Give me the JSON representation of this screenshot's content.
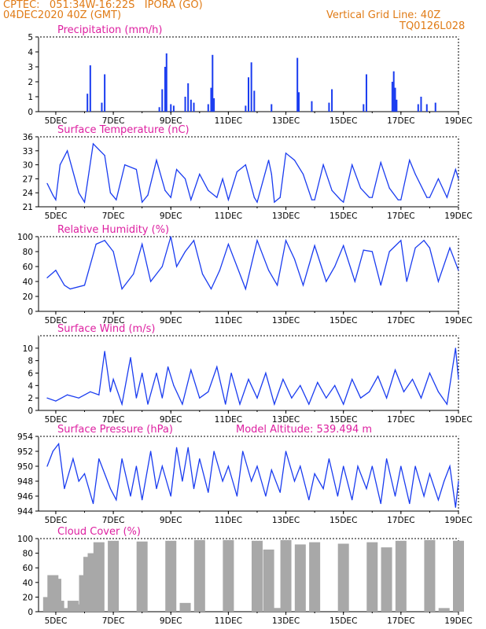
{
  "header": {
    "line1": "CPTEC:   051:34W-16:22S   IPORA (GO)",
    "line2": "04DEC2020 40Z (GMT)",
    "right1": "Vertical Grid Line: 40Z",
    "right2": "TQ0126L028",
    "color": "#e07b16"
  },
  "chart_data": [
    {
      "type": "bar",
      "title": "Precipitation (mm/h)",
      "xticks": [
        "5DEC",
        "7DEC",
        "9DEC",
        "11DEC",
        "13DEC",
        "15DEC",
        "17DEC",
        "19DEC"
      ],
      "ylim": [
        0,
        5
      ],
      "yticks": [
        0,
        1,
        2,
        3,
        4,
        5
      ],
      "color": "#1a3cf0",
      "x": [
        6.1,
        6.2,
        6.6,
        6.7,
        8.6,
        8.7,
        8.8,
        8.85,
        9.0,
        9.1,
        9.5,
        9.6,
        9.7,
        9.8,
        10.3,
        10.4,
        10.45,
        10.5,
        11.6,
        11.7,
        11.8,
        11.9,
        12.5,
        13.4,
        13.45,
        13.9,
        14.5,
        14.6,
        15.7,
        15.8,
        16.7,
        16.75,
        16.8,
        16.85,
        17.6,
        17.7,
        17.9,
        18.2
      ],
      "values": [
        1.2,
        3.1,
        0.6,
        2.5,
        0.3,
        1.5,
        3.0,
        3.9,
        0.5,
        0.4,
        1.0,
        1.9,
        0.8,
        0.6,
        0.5,
        1.6,
        3.8,
        0.9,
        0.4,
        2.3,
        3.3,
        1.4,
        0.5,
        3.6,
        1.3,
        0.7,
        0.6,
        1.5,
        0.5,
        2.5,
        2.0,
        2.7,
        1.6,
        0.8,
        0.5,
        1.0,
        0.5,
        0.6
      ]
    },
    {
      "type": "line",
      "title": "Surface Temperature (nC)",
      "xticks": [
        "5DEC",
        "7DEC",
        "9DEC",
        "11DEC",
        "13DEC",
        "15DEC",
        "17DEC",
        "19DEC"
      ],
      "ylim": [
        21,
        36
      ],
      "yticks": [
        21,
        24,
        27,
        30,
        33,
        36
      ],
      "color": "#1a3cf0",
      "x": [
        4.7,
        4.9,
        5.0,
        5.15,
        5.4,
        5.8,
        6.0,
        6.3,
        6.7,
        6.9,
        7.1,
        7.4,
        7.8,
        8.0,
        8.2,
        8.5,
        8.8,
        9.0,
        9.2,
        9.5,
        9.7,
        10.0,
        10.3,
        10.6,
        10.8,
        11.0,
        11.3,
        11.6,
        11.9,
        12.0,
        12.4,
        12.5,
        12.6,
        12.8,
        13.0,
        13.3,
        13.6,
        13.9,
        14.0,
        14.3,
        14.6,
        14.9,
        15.0,
        15.3,
        15.6,
        15.9,
        16.0,
        16.3,
        16.6,
        16.9,
        17.0,
        17.3,
        17.5,
        17.9,
        18.0,
        18.3,
        18.6,
        18.9,
        19.0
      ],
      "values": [
        26,
        23.5,
        22.5,
        30,
        33,
        24,
        22,
        34.5,
        32,
        24,
        22.5,
        30,
        29,
        22,
        23.5,
        31,
        24.5,
        23,
        29,
        27,
        22.5,
        28,
        24.5,
        23,
        27,
        22.5,
        28.5,
        30,
        23,
        22,
        31,
        28,
        22,
        23,
        32.5,
        31,
        28,
        22.5,
        22.5,
        30,
        24.5,
        22.5,
        22,
        30,
        25,
        23,
        23,
        30.5,
        25,
        22.5,
        22.5,
        31,
        28,
        23,
        23,
        27,
        23,
        29,
        27
      ]
    },
    {
      "type": "line",
      "title": "Relative Humidity (%)",
      "xticks": [
        "5DEC",
        "7DEC",
        "9DEC",
        "11DEC",
        "13DEC",
        "15DEC",
        "17DEC",
        "19DEC"
      ],
      "ylim": [
        0,
        100
      ],
      "yticks": [
        0,
        20,
        40,
        60,
        80,
        100
      ],
      "color": "#1a3cf0",
      "x": [
        4.7,
        5.0,
        5.3,
        5.5,
        6.0,
        6.4,
        6.7,
        7.0,
        7.3,
        7.7,
        8.0,
        8.3,
        8.7,
        9.0,
        9.2,
        9.5,
        9.8,
        10.1,
        10.4,
        10.7,
        11.0,
        11.3,
        11.6,
        12.0,
        12.4,
        12.7,
        13.0,
        13.3,
        13.6,
        14.0,
        14.4,
        14.7,
        15.0,
        15.4,
        15.7,
        16.0,
        16.3,
        16.6,
        17.0,
        17.2,
        17.5,
        17.8,
        18.0,
        18.3,
        18.7,
        19.0
      ],
      "values": [
        45,
        55,
        35,
        30,
        35,
        90,
        95,
        80,
        30,
        50,
        90,
        40,
        60,
        100,
        60,
        80,
        95,
        50,
        30,
        55,
        90,
        60,
        30,
        95,
        55,
        35,
        95,
        70,
        35,
        88,
        40,
        60,
        88,
        40,
        82,
        80,
        35,
        80,
        95,
        40,
        85,
        95,
        85,
        40,
        85,
        55
      ]
    },
    {
      "type": "line",
      "title": "Surface Wind (m/s)",
      "xticks": [
        "5DEC",
        "7DEC",
        "9DEC",
        "11DEC",
        "13DEC",
        "15DEC",
        "17DEC",
        "19DEC"
      ],
      "ylim": [
        0,
        12
      ],
      "yticks": [
        0,
        2,
        4,
        6,
        8,
        10
      ],
      "color": "#1a3cf0",
      "x": [
        4.7,
        5.0,
        5.4,
        5.8,
        6.2,
        6.5,
        6.7,
        6.9,
        7.0,
        7.3,
        7.6,
        7.8,
        8.0,
        8.2,
        8.5,
        8.7,
        8.9,
        9.1,
        9.4,
        9.7,
        10.0,
        10.3,
        10.6,
        10.9,
        11.1,
        11.4,
        11.7,
        12.0,
        12.3,
        12.6,
        12.9,
        13.2,
        13.5,
        13.8,
        14.1,
        14.4,
        14.7,
        15.0,
        15.3,
        15.6,
        15.9,
        16.2,
        16.5,
        16.8,
        17.1,
        17.4,
        17.7,
        18.0,
        18.3,
        18.6,
        18.9,
        19.0
      ],
      "values": [
        2,
        1.5,
        2.5,
        2,
        3,
        2.5,
        9.5,
        3,
        5,
        1,
        8.5,
        2,
        6,
        1,
        6,
        2,
        7,
        4,
        1,
        6.5,
        2,
        3,
        7,
        1,
        6,
        1,
        5,
        2,
        6,
        1,
        5,
        2,
        4,
        1,
        4.5,
        2,
        4,
        1,
        5,
        2,
        3,
        5.5,
        2,
        6.5,
        3,
        5,
        2,
        6,
        3,
        1,
        10,
        5
      ]
    },
    {
      "type": "line",
      "title": "Surface Pressure (hPa)",
      "annotation": "Model Altitude: 539.494 m",
      "xticks": [
        "5DEC",
        "7DEC",
        "9DEC",
        "11DEC",
        "13DEC",
        "15DEC",
        "17DEC",
        "19DEC"
      ],
      "ylim": [
        944,
        954
      ],
      "yticks": [
        944,
        946,
        948,
        950,
        952,
        954
      ],
      "color": "#1a3cf0",
      "x": [
        4.7,
        4.9,
        5.1,
        5.3,
        5.6,
        5.8,
        6.0,
        6.3,
        6.5,
        6.7,
        6.9,
        7.1,
        7.3,
        7.6,
        7.8,
        8.0,
        8.3,
        8.5,
        8.7,
        9.0,
        9.2,
        9.4,
        9.6,
        9.8,
        10.0,
        10.3,
        10.5,
        10.8,
        11.0,
        11.3,
        11.5,
        11.8,
        12.0,
        12.3,
        12.5,
        12.8,
        13.0,
        13.3,
        13.5,
        13.8,
        14.0,
        14.3,
        14.5,
        14.8,
        15.0,
        15.3,
        15.5,
        15.8,
        16.0,
        16.3,
        16.5,
        16.8,
        17.0,
        17.3,
        17.5,
        17.8,
        18.0,
        18.3,
        18.5,
        18.7,
        18.9,
        19.0
      ],
      "values": [
        950,
        952,
        953,
        947,
        951,
        948,
        949,
        945,
        951,
        949,
        947,
        945.5,
        951,
        946,
        950,
        945.5,
        952,
        947,
        950,
        946,
        952.5,
        948,
        952.5,
        947,
        951,
        946.5,
        952,
        948,
        950,
        946,
        952,
        948,
        950,
        946,
        949.5,
        946.5,
        952,
        948,
        950,
        945.5,
        949,
        947,
        951,
        946,
        950,
        945.5,
        950,
        947,
        950,
        945,
        951,
        946,
        950,
        945,
        950,
        946,
        949,
        945.5,
        948,
        950,
        944.5,
        948
      ]
    },
    {
      "type": "bar",
      "title": "Cloud Cover (%)",
      "xticks": [
        "5DEC",
        "7DEC",
        "9DEC",
        "11DEC",
        "13DEC",
        "15DEC",
        "17DEC",
        "19DEC"
      ],
      "ylim": [
        0,
        100
      ],
      "yticks": [
        0,
        20,
        40,
        60,
        80,
        100
      ],
      "color": "#a8a8a8",
      "x": [
        4.75,
        4.9,
        5.0,
        5.1,
        5.3,
        5.6,
        5.75,
        5.9,
        6.0,
        6.15,
        6.3,
        6.5,
        7.0,
        8.0,
        9.0,
        9.5,
        10.0,
        11.0,
        12.0,
        12.4,
        12.6,
        12.75,
        13.0,
        13.5,
        14.0,
        15.0,
        16.0,
        16.5,
        17.0,
        18.0,
        18.5,
        19.0
      ],
      "values": [
        20,
        50,
        45,
        15,
        5,
        15,
        10,
        5,
        50,
        75,
        80,
        95,
        97,
        96,
        97,
        12,
        98,
        98,
        97,
        85,
        5,
        5,
        98,
        92,
        95,
        93,
        95,
        88,
        97,
        98,
        5,
        97
      ]
    }
  ]
}
